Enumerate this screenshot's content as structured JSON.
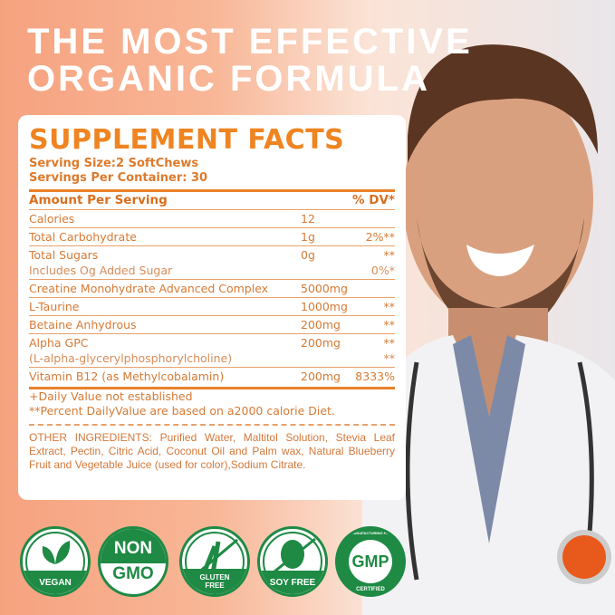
{
  "headline": [
    "THE MOST EFFECTIVE",
    "ORGANIC FORMULA"
  ],
  "facts": {
    "title": "SUPPLEMENT FACTS",
    "serving_size": "Serving Size:2 SoftChews",
    "servings_per_container": "Servings Per Container: 30",
    "header": {
      "amount": "Amount Per Serving",
      "dv": "% DV*"
    },
    "rows": [
      {
        "name": "Calories",
        "amount": "12",
        "dv": ""
      },
      {
        "name": "Total Carbohydrate",
        "amount": "1g",
        "dv": "2%**"
      },
      {
        "name": "Total Sugars",
        "amount": "0g",
        "dv": "**",
        "sub": "Includes Og Added Sugar",
        "sub_dv": "0%*"
      },
      {
        "name": "Creatine Monohydrate Advanced Complex",
        "amount": "5000mg",
        "dv": ""
      },
      {
        "name": "L-Taurine",
        "amount": "1000mg",
        "dv": "**"
      },
      {
        "name": "Betaine Anhydrous",
        "amount": "200mg",
        "dv": "**"
      },
      {
        "name": "Alpha GPC",
        "amount": "200mg",
        "dv": "**",
        "sub": "(L-alpha-glycerylphosphorylcholine)",
        "sub_dv": "**"
      },
      {
        "name": "Vitamin B12 (as Methylcobalamin)",
        "amount": "200mg",
        "dv": "8333%"
      }
    ],
    "notes": [
      "+Daily Value not established",
      "**Percent DailyValue are based on a2000 calorie Diet."
    ],
    "other_ingredients": "OTHER INGREDIENTS: Purified Water, Maltitol Solution, Stevia Leaf Extract, Pectin, Citric Acid, Coconut Oil and Palm wax, Natural Blueberry Fruit and Vegetable Juice (used for color),Sodium Citrate."
  },
  "badges": {
    "vegan": "VEGAN",
    "non": "NON",
    "gmo": "GMO",
    "gluten": "GLUTEN",
    "free": "FREE",
    "soy": "SOY FREE",
    "gmp": "GMP",
    "gmp_top": "GOOD MANUFACTURING PRACTICE",
    "gmp_bottom": "CERTIFIED"
  },
  "colors": {
    "accent": "#ef8421",
    "badge_green": "#1e8a44"
  }
}
